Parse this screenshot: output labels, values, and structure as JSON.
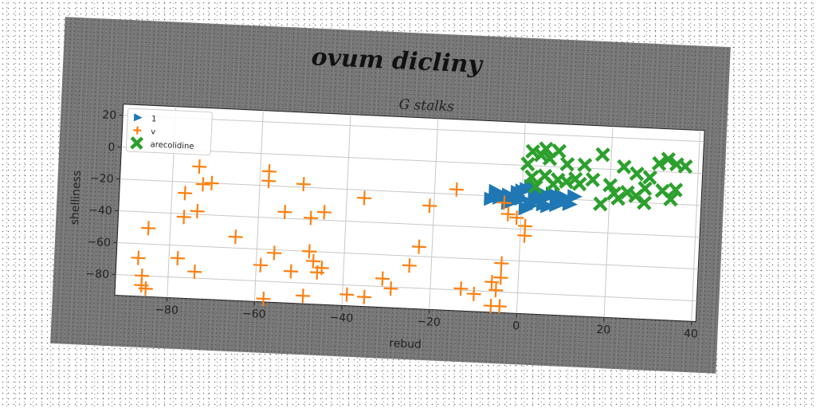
{
  "chart_data": {
    "type": "scatter",
    "suptitle": "ovum dicliny",
    "title": "G stalks",
    "xlabel": "rebud",
    "ylabel": "shelliness",
    "xlim": [
      -92,
      41
    ],
    "ylim": [
      -93,
      27
    ],
    "xticks": [
      -80,
      -60,
      -40,
      -20,
      0,
      20,
      40
    ],
    "yticks": [
      20,
      0,
      -20,
      -40,
      -60,
      -80
    ],
    "grid": true,
    "legend_position": "top-left",
    "series": [
      {
        "name": "1",
        "marker": "triangle-right",
        "color": "#1f77b4",
        "points": [
          [
            -7,
            -22
          ],
          [
            -5,
            -21
          ],
          [
            -3,
            -19
          ],
          [
            -1,
            -17
          ],
          [
            1,
            -15
          ],
          [
            2,
            -13
          ],
          [
            3,
            -18
          ],
          [
            -2,
            -23
          ],
          [
            0,
            -21
          ],
          [
            4,
            -20
          ],
          [
            6,
            -19
          ],
          [
            8,
            -21
          ],
          [
            10,
            -20
          ],
          [
            2,
            -25
          ],
          [
            5,
            -24
          ],
          [
            -4,
            -20
          ],
          [
            0,
            -16
          ],
          [
            7,
            -17
          ],
          [
            3,
            -22
          ],
          [
            -1,
            -19
          ],
          [
            11,
            -23
          ],
          [
            9,
            -18
          ],
          [
            6,
            -25
          ],
          [
            12,
            -18
          ],
          [
            1,
            -27
          ],
          [
            4,
            -16
          ],
          [
            8,
            -24
          ],
          [
            -6,
            -17
          ],
          [
            -3,
            -24
          ]
        ]
      },
      {
        "name": "v",
        "marker": "plus",
        "color": "#ff7f0e",
        "points": [
          [
            -74,
            -10
          ],
          [
            -58,
            -11
          ],
          [
            -58,
            -17
          ],
          [
            -50,
            -18
          ],
          [
            -73,
            -21
          ],
          [
            -71,
            -20
          ],
          [
            -77,
            -27
          ],
          [
            -36,
            -25
          ],
          [
            -15,
            -17
          ],
          [
            -21,
            -28
          ],
          [
            -4,
            -24
          ],
          [
            -3,
            -31
          ],
          [
            -1,
            -33
          ],
          [
            1,
            -38
          ],
          [
            1,
            -44
          ],
          [
            -54,
            -36
          ],
          [
            -45,
            -35
          ],
          [
            -48,
            -39
          ],
          [
            -77,
            -42
          ],
          [
            -74,
            -38
          ],
          [
            -85,
            -50
          ],
          [
            -65,
            -53
          ],
          [
            -23,
            -54
          ],
          [
            -48,
            -60
          ],
          [
            -56,
            -62
          ],
          [
            -59,
            -70
          ],
          [
            -25,
            -66
          ],
          [
            -47,
            -66
          ],
          [
            -46,
            -73
          ],
          [
            -52,
            -73
          ],
          [
            -45,
            -70
          ],
          [
            -31,
            -75
          ],
          [
            -29,
            -81
          ],
          [
            -78,
            -68
          ],
          [
            -74,
            -76
          ],
          [
            -87,
            -69
          ],
          [
            -86,
            -80
          ],
          [
            -86,
            -86
          ],
          [
            -85,
            -88
          ],
          [
            -39,
            -86
          ],
          [
            -35,
            -87
          ],
          [
            -49,
            -88
          ],
          [
            -58,
            -91
          ],
          [
            -4,
            -62
          ],
          [
            -4,
            -71
          ],
          [
            -6,
            -74
          ],
          [
            -5,
            -79
          ],
          [
            -13,
            -79
          ],
          [
            -10,
            -82
          ],
          [
            -6,
            -89
          ],
          [
            -4,
            -89
          ]
        ]
      },
      {
        "name": "arecolidine",
        "marker": "x",
        "color": "#2ca02c",
        "points": [
          [
            2,
            9
          ],
          [
            5,
            11
          ],
          [
            8,
            10
          ],
          [
            4,
            7
          ],
          [
            1,
            1
          ],
          [
            6,
            5
          ],
          [
            10,
            2
          ],
          [
            14,
            2
          ],
          [
            18,
            9
          ],
          [
            23,
            2
          ],
          [
            26,
            -2
          ],
          [
            31,
            5
          ],
          [
            33,
            8
          ],
          [
            37,
            4
          ],
          [
            35,
            5
          ],
          [
            2,
            -7
          ],
          [
            5,
            -6
          ],
          [
            8,
            -8
          ],
          [
            10,
            -9
          ],
          [
            12,
            -7
          ],
          [
            16,
            -7
          ],
          [
            20,
            -10
          ],
          [
            22,
            -18
          ],
          [
            24,
            -14
          ],
          [
            26,
            -16
          ],
          [
            28,
            -11
          ],
          [
            32,
            -12
          ],
          [
            35,
            -11
          ],
          [
            34,
            -17
          ],
          [
            18,
            -22
          ],
          [
            13,
            -10
          ],
          [
            7,
            -11
          ],
          [
            3,
            -13
          ],
          [
            29,
            -4
          ],
          [
            21,
            -15
          ],
          [
            28,
            -20
          ]
        ]
      }
    ]
  }
}
